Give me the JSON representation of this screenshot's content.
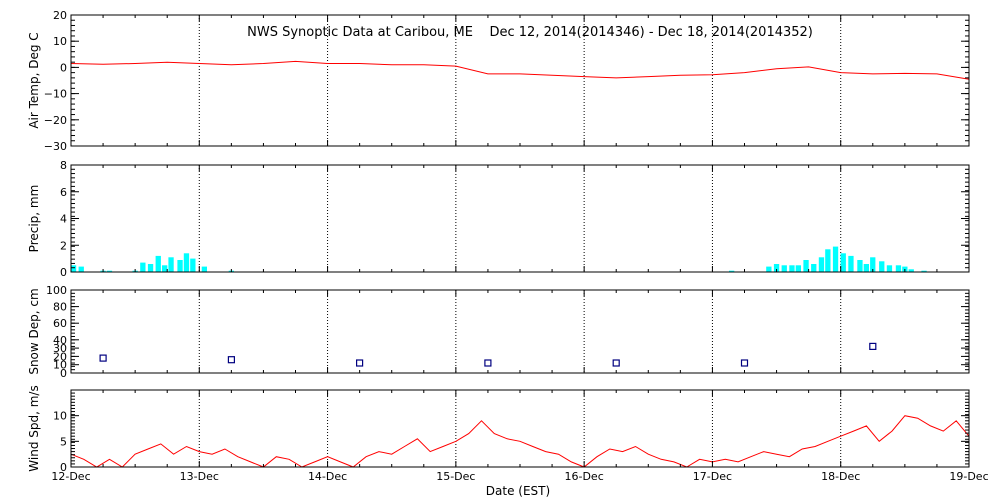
{
  "chart_data": {
    "type": "line",
    "title": "NWS Synoptic Data at Caribou, ME    Dec 12, 2014(2014346) - Dec 18, 2014(2014352)",
    "xlabel": "Date (EST)",
    "x_tick_labels": [
      "12-Dec",
      "13-Dec",
      "14-Dec",
      "15-Dec",
      "16-Dec",
      "17-Dec",
      "18-Dec",
      "19-Dec"
    ],
    "x_range_days": [
      0,
      7
    ],
    "grid": "dotted vertical at midnight",
    "colors": {
      "air_temp": "#ff0000",
      "precip": "#00ffff",
      "snow_depth": "#000080",
      "wind_speed": "#ff0000",
      "grid": "#000000"
    },
    "panels": [
      {
        "id": "air-temp",
        "type": "line",
        "ylabel": "Air Temp, Deg C",
        "ylim": [
          -30,
          20
        ],
        "ytick_values": [
          20,
          10,
          0,
          -10,
          -20,
          -30
        ],
        "ytick_labels": [
          "20",
          "10",
          "0",
          "−10",
          "−20",
          "−30"
        ],
        "series": [
          {
            "x": [
              0,
              0.25,
              0.5,
              0.75,
              1,
              1.25,
              1.5,
              1.75,
              2,
              2.25,
              2.5,
              2.75,
              3,
              3.25,
              3.5,
              3.75,
              4,
              4.25,
              4.5,
              4.75,
              5,
              5.25,
              5.5,
              5.75,
              6,
              6.25,
              6.5,
              6.75,
              7
            ],
            "y": [
              1.5,
              1.2,
              1.5,
              2.0,
              1.5,
              1.0,
              1.5,
              2.3,
              1.5,
              1.5,
              1.0,
              1.0,
              0.5,
              -2.5,
              -2.5,
              -3.0,
              -3.5,
              -4.0,
              -3.5,
              -3.0,
              -2.8,
              -2.0,
              -0.5,
              0.2,
              -2.0,
              -2.5,
              -2.3,
              -2.5,
              -4.5
            ]
          }
        ]
      },
      {
        "id": "precip",
        "type": "bar",
        "ylabel": "Precip, mm",
        "ylim": [
          0,
          8
        ],
        "ytick_values": [
          0,
          2,
          4,
          6,
          8
        ],
        "ytick_labels": [
          "0",
          "2",
          "4",
          "6",
          "8"
        ],
        "bin_width_days": 0.0417,
        "series": [
          {
            "x": [
              0.02,
              0.08,
              0.25,
              0.3,
              0.5,
              0.56,
              0.62,
              0.68,
              0.73,
              0.78,
              0.85,
              0.9,
              0.95,
              1.04,
              1.25,
              5.15,
              5.44,
              5.5,
              5.56,
              5.62,
              5.67,
              5.73,
              5.79,
              5.85,
              5.9,
              5.96,
              6.02,
              6.08,
              6.15,
              6.2,
              6.25,
              6.32,
              6.38,
              6.45,
              6.5,
              6.55,
              6.65
            ],
            "y": [
              0.5,
              0.4,
              0.1,
              0.1,
              0.1,
              0.7,
              0.6,
              1.2,
              0.5,
              1.1,
              0.9,
              1.4,
              1.0,
              0.4,
              0.1,
              0.1,
              0.4,
              0.6,
              0.5,
              0.5,
              0.5,
              0.9,
              0.6,
              1.1,
              1.7,
              1.9,
              1.4,
              1.2,
              0.9,
              0.6,
              1.1,
              0.8,
              0.5,
              0.5,
              0.4,
              0.2,
              0.1
            ]
          }
        ]
      },
      {
        "id": "snow-depth",
        "type": "scatter",
        "ylabel": "Snow Dep, cm",
        "ylim": [
          0,
          100
        ],
        "ytick_values": [
          0,
          10,
          20,
          30,
          40,
          60,
          80,
          100
        ],
        "ytick_labels": [
          "0",
          "10",
          "20",
          "30",
          "40",
          "60",
          "80",
          "100"
        ],
        "series": [
          {
            "x": [
              0.25,
              1.25,
              2.25,
              3.25,
              4.25,
              5.25,
              6.25
            ],
            "y": [
              18,
              16,
              12,
              12,
              12,
              12,
              32
            ]
          }
        ]
      },
      {
        "id": "wind-speed",
        "type": "line",
        "ylabel": "Wind Spd, m/s",
        "ylim": [
          0,
          15
        ],
        "ytick_values": [
          0,
          5,
          10
        ],
        "ytick_labels": [
          "0",
          "5",
          "10"
        ],
        "series": [
          {
            "x": [
              0,
              0.1,
              0.2,
              0.3,
              0.4,
              0.5,
              0.6,
              0.7,
              0.8,
              0.9,
              1,
              1.1,
              1.2,
              1.3,
              1.4,
              1.5,
              1.6,
              1.7,
              1.8,
              1.9,
              2,
              2.1,
              2.2,
              2.3,
              2.4,
              2.5,
              2.6,
              2.7,
              2.8,
              2.9,
              3,
              3.1,
              3.2,
              3.3,
              3.4,
              3.5,
              3.6,
              3.7,
              3.8,
              3.9,
              4,
              4.1,
              4.2,
              4.3,
              4.4,
              4.5,
              4.6,
              4.7,
              4.8,
              4.9,
              5,
              5.1,
              5.2,
              5.3,
              5.4,
              5.5,
              5.6,
              5.7,
              5.8,
              5.9,
              6,
              6.1,
              6.2,
              6.3,
              6.4,
              6.5,
              6.6,
              6.7,
              6.8,
              6.9,
              7
            ],
            "y": [
              2.5,
              1.5,
              0,
              1.5,
              0,
              2.5,
              3.5,
              4.5,
              2.5,
              4.0,
              3.0,
              2.5,
              3.5,
              2.0,
              1.0,
              0,
              2.0,
              1.5,
              0,
              1.0,
              2.0,
              1.0,
              0,
              2.0,
              3.0,
              2.5,
              4.0,
              5.5,
              3.0,
              4.0,
              5.0,
              6.5,
              9.0,
              6.5,
              5.5,
              5.0,
              4.0,
              3.0,
              2.5,
              1.0,
              0,
              2.0,
              3.5,
              3.0,
              4.0,
              2.5,
              1.5,
              1.0,
              0,
              1.5,
              1.0,
              1.5,
              1.0,
              2.0,
              3.0,
              2.5,
              2.0,
              3.5,
              4.0,
              5.0,
              6.0,
              7.0,
              8.0,
              5.0,
              7.0,
              10.0,
              9.5,
              8.0,
              7.0,
              9.0,
              6.0
            ]
          }
        ]
      }
    ]
  }
}
